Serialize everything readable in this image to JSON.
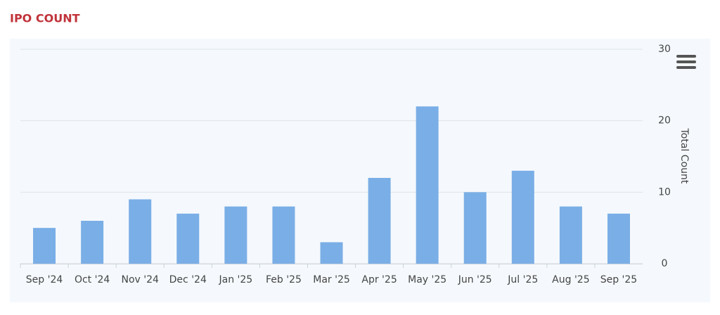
{
  "chart_data": {
    "type": "bar",
    "title": "IPO COUNT",
    "y_axis_label": "Total Count",
    "categories": [
      "Sep '24",
      "Oct '24",
      "Nov '24",
      "Dec '24",
      "Jan '25",
      "Feb '25",
      "Mar '25",
      "Apr '25",
      "May '25",
      "Jun '25",
      "Jul '25",
      "Aug '25",
      "Sep '25"
    ],
    "values": [
      5,
      6,
      9,
      7,
      8,
      8,
      3,
      12,
      22,
      10,
      13,
      8,
      7
    ],
    "color": "#7aaee6",
    "ylim": [
      0,
      30
    ],
    "yticks": [
      0,
      10,
      20,
      30
    ],
    "grid": true
  }
}
